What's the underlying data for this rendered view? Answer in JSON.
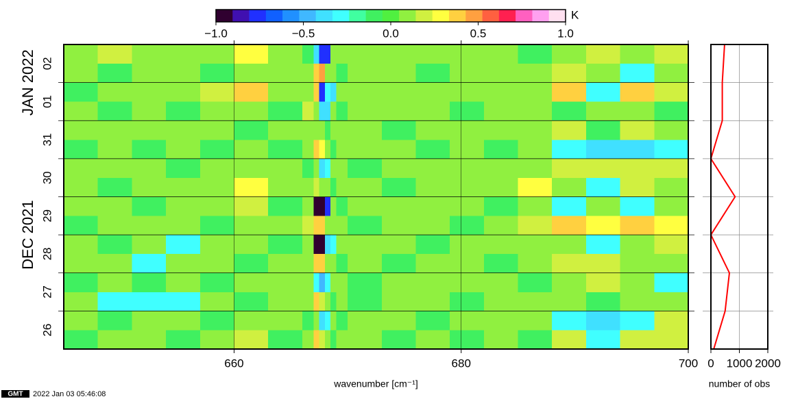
{
  "chart_data": [
    {
      "type": "heatmap",
      "xlabel": "wavenumber [cm⁻¹]",
      "x_edges": [
        645,
        648,
        651,
        654,
        657,
        660,
        663,
        666,
        667,
        667.5,
        668,
        668.5,
        669,
        670,
        673,
        676,
        679,
        682,
        685,
        688,
        691,
        694,
        697,
        700
      ],
      "xlim": [
        645,
        700
      ],
      "xticks": [
        660,
        680,
        700
      ],
      "grid": true,
      "y_categories": [
        "26",
        null,
        "27",
        null,
        "28",
        null,
        "29",
        null,
        "30",
        null,
        "31",
        null,
        "01",
        null,
        "02",
        null
      ],
      "y_months": [
        "DEC 2021",
        "JAN 2022"
      ],
      "z": [
        [
          -0.05,
          0.05,
          0.05,
          -0.05,
          0.05,
          0.15,
          -0.05,
          0.05,
          0.35,
          0.15,
          0.05,
          -0.05,
          0.05,
          0.05,
          -0.05,
          0.05,
          -0.05,
          0.05,
          -0.05,
          0.15,
          -0.25,
          0.15,
          0.15
        ],
        [
          0.05,
          -0.05,
          0.05,
          0.05,
          -0.05,
          0.05,
          0.05,
          -0.05,
          0.05,
          -0.35,
          -0.25,
          0.05,
          -0.05,
          0.05,
          0.05,
          -0.05,
          0.05,
          0.05,
          0.05,
          -0.25,
          -0.35,
          -0.25,
          0.15
        ],
        [
          0.05,
          -0.25,
          -0.25,
          -0.25,
          0.05,
          -0.05,
          0.05,
          0.05,
          0.35,
          0.15,
          0.05,
          -0.05,
          0.05,
          -0.05,
          0.05,
          0.05,
          -0.05,
          0.05,
          0.05,
          0.05,
          -0.05,
          0.05,
          0.05
        ],
        [
          -0.05,
          0.05,
          -0.05,
          0.05,
          -0.05,
          0.05,
          0.05,
          0.05,
          -0.25,
          -0.45,
          -0.25,
          0.05,
          0.05,
          -0.05,
          0.05,
          0.05,
          0.05,
          0.05,
          -0.05,
          0.05,
          0.15,
          0.05,
          -0.25
        ],
        [
          0.05,
          0.05,
          -0.25,
          0.05,
          0.05,
          -0.05,
          0.05,
          0.05,
          0.35,
          0.35,
          0.05,
          0.05,
          -0.05,
          0.05,
          -0.05,
          0.05,
          0.05,
          -0.05,
          0.05,
          0.15,
          0.15,
          0.05,
          0.05
        ],
        [
          0.05,
          -0.05,
          0.05,
          -0.25,
          0.05,
          0.05,
          -0.05,
          0.05,
          -0.95,
          -0.95,
          -0.35,
          -0.25,
          0.05,
          0.05,
          0.05,
          -0.05,
          0.05,
          0.05,
          0.05,
          0.05,
          -0.25,
          0.05,
          0.15
        ],
        [
          -0.05,
          0.05,
          0.05,
          0.05,
          -0.05,
          0.05,
          0.05,
          0.15,
          0.35,
          0.35,
          0.05,
          0.05,
          0.05,
          -0.05,
          0.05,
          0.05,
          -0.05,
          0.05,
          0.15,
          0.35,
          0.25,
          0.35,
          0.25
        ],
        [
          0.05,
          0.05,
          -0.05,
          0.05,
          0.05,
          0.15,
          -0.05,
          0.05,
          -0.95,
          -0.95,
          -0.75,
          0.05,
          -0.05,
          0.05,
          0.05,
          0.05,
          0.05,
          -0.05,
          0.05,
          -0.25,
          0.05,
          -0.25,
          0.05
        ],
        [
          0.05,
          -0.05,
          0.05,
          0.05,
          0.05,
          0.25,
          0.05,
          0.05,
          0.15,
          0.05,
          0.05,
          -0.05,
          0.05,
          0.05,
          -0.05,
          0.05,
          0.05,
          0.05,
          0.25,
          0.05,
          -0.25,
          0.15,
          0.05
        ],
        [
          0.05,
          0.05,
          0.05,
          -0.05,
          0.05,
          0.05,
          0.05,
          -0.05,
          0.05,
          -0.35,
          -0.25,
          0.05,
          0.05,
          -0.05,
          0.05,
          0.05,
          0.05,
          0.05,
          0.05,
          0.15,
          0.15,
          0.15,
          0.15
        ],
        [
          -0.05,
          0.05,
          -0.05,
          0.05,
          -0.05,
          0.05,
          -0.05,
          0.05,
          0.35,
          0.25,
          0.05,
          -0.05,
          0.05,
          0.05,
          0.05,
          -0.05,
          0.05,
          -0.05,
          0.05,
          -0.25,
          -0.35,
          -0.35,
          -0.25
        ],
        [
          0.05,
          0.05,
          0.05,
          0.05,
          0.05,
          -0.05,
          0.05,
          0.05,
          0.05,
          0.05,
          -0.05,
          0.05,
          0.05,
          0.05,
          -0.05,
          0.05,
          0.05,
          0.05,
          0.05,
          0.15,
          -0.05,
          0.15,
          0.05
        ],
        [
          0.05,
          -0.05,
          0.05,
          -0.05,
          0.05,
          0.05,
          -0.05,
          0.15,
          0.05,
          -0.35,
          -0.35,
          0.05,
          -0.05,
          0.05,
          0.05,
          0.05,
          -0.05,
          0.05,
          0.05,
          -0.05,
          0.05,
          0.05,
          -0.05
        ],
        [
          -0.05,
          0.05,
          0.05,
          0.05,
          0.15,
          0.35,
          0.05,
          0.05,
          0.35,
          -0.75,
          -0.25,
          -0.35,
          0.05,
          0.05,
          0.05,
          0.05,
          0.05,
          0.05,
          0.05,
          0.35,
          -0.25,
          0.35,
          0.15
        ],
        [
          0.05,
          -0.05,
          0.05,
          0.05,
          -0.05,
          0.05,
          0.05,
          0.05,
          0.35,
          0.45,
          0.05,
          0.05,
          -0.05,
          0.05,
          0.05,
          -0.05,
          0.05,
          0.05,
          0.05,
          0.15,
          0.05,
          -0.25,
          0.05
        ],
        [
          0.05,
          0.15,
          0.05,
          0.05,
          0.05,
          0.25,
          0.05,
          -0.05,
          -0.35,
          -0.75,
          -0.75,
          0.05,
          0.05,
          0.05,
          0.05,
          0.05,
          0.05,
          0.05,
          -0.05,
          0.05,
          0.15,
          0.05,
          0.15
        ]
      ],
      "colorbar": {
        "label": "K",
        "lim": [
          -1,
          1
        ],
        "colors": [
          "#300030",
          "#4010b0",
          "#2030ff",
          "#1060ff",
          "#2090ff",
          "#40b8ff",
          "#40e0ff",
          "#40ffff",
          "#40ffa0",
          "#40f060",
          "#50f040",
          "#90f040",
          "#d0f040",
          "#ffff40",
          "#ffd040",
          "#ffa040",
          "#ff6040",
          "#ff2050",
          "#ff60c0",
          "#ffa0f0",
          "#ffe0f0"
        ],
        "ticks": [
          {
            "value": -1,
            "label": "−1.0"
          },
          {
            "value": -0.5,
            "label": "−0.5"
          },
          {
            "value": 0,
            "label": "0.0"
          },
          {
            "value": 0.5,
            "label": "0.5"
          },
          {
            "value": 1,
            "label": "1.0"
          }
        ]
      }
    },
    {
      "type": "line",
      "xlabel": "number of obs",
      "xlim": [
        0,
        2000
      ],
      "xticks": [
        0,
        1000,
        2000
      ],
      "grid": true,
      "color": "#ff0000",
      "values": [
        100,
        500,
        650,
        0,
        850,
        0,
        400,
        400,
        480
      ]
    }
  ],
  "footer": {
    "logo": "GMT",
    "timestamp": "2022 Jan 03 05:46:08"
  }
}
